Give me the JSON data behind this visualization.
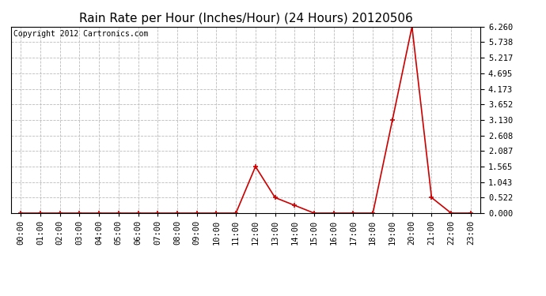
{
  "title": "Rain Rate per Hour (Inches/Hour) (24 Hours) 20120506",
  "copyright": "Copyright 2012 Cartronics.com",
  "x_labels": [
    "00:00",
    "01:00",
    "02:00",
    "03:00",
    "04:00",
    "05:00",
    "06:00",
    "07:00",
    "08:00",
    "09:00",
    "10:00",
    "11:00",
    "12:00",
    "13:00",
    "14:00",
    "15:00",
    "16:00",
    "17:00",
    "18:00",
    "19:00",
    "20:00",
    "21:00",
    "22:00",
    "23:00"
  ],
  "y_values": [
    0.0,
    0.0,
    0.0,
    0.0,
    0.0,
    0.0,
    0.0,
    0.0,
    0.0,
    0.0,
    0.0,
    0.0,
    1.565,
    0.522,
    0.261,
    0.0,
    0.0,
    0.0,
    0.0,
    3.13,
    6.26,
    0.522,
    0.0,
    0.0
  ],
  "yticks": [
    0.0,
    0.522,
    1.043,
    1.565,
    2.087,
    2.608,
    3.13,
    3.652,
    4.173,
    4.695,
    5.217,
    5.738,
    6.26
  ],
  "ylim": [
    0.0,
    6.26
  ],
  "line_color": "#cc0000",
  "marker_color": "#cc0000",
  "bg_color": "#ffffff",
  "grid_color": "#bbbbbb",
  "title_fontsize": 11,
  "copyright_fontsize": 7,
  "tick_fontsize": 7.5,
  "ytick_fontsize": 7.5
}
